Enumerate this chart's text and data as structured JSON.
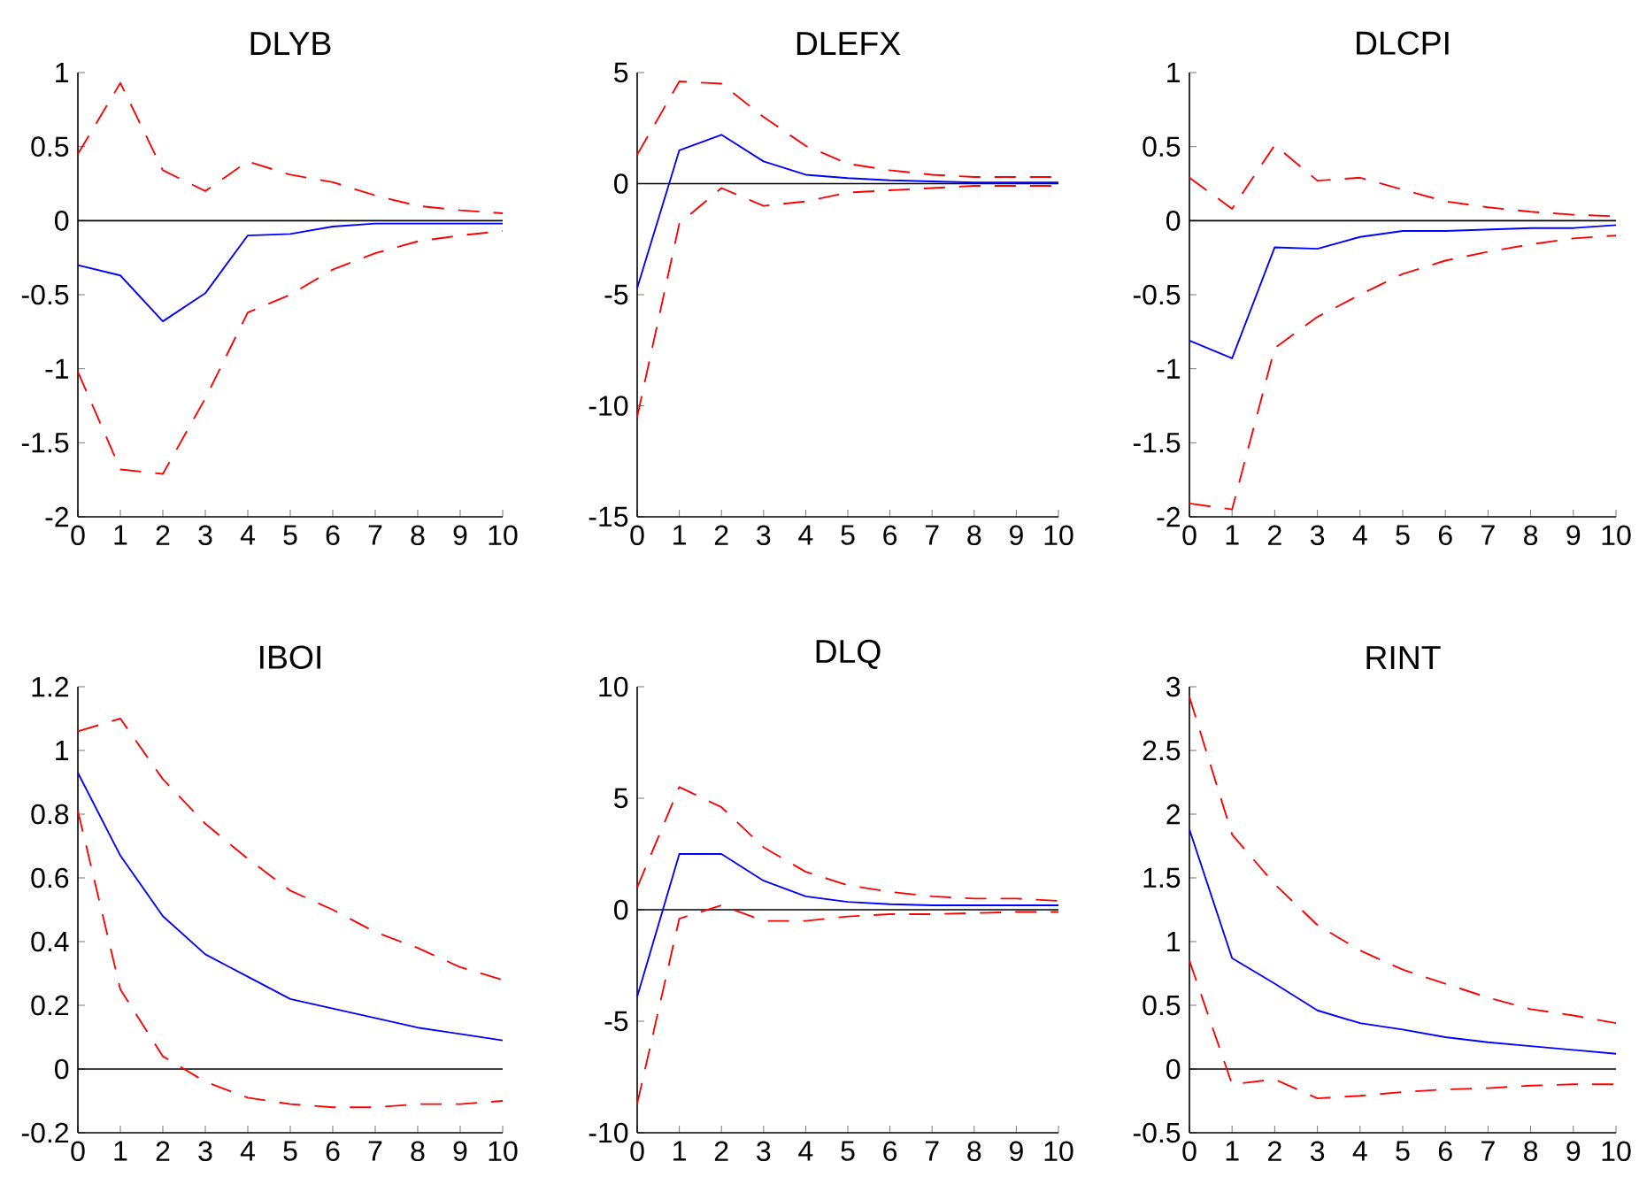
{
  "chart_data": [
    {
      "type": "line",
      "title": "DLYB",
      "x": [
        0,
        1,
        2,
        3,
        4,
        5,
        6,
        7,
        8,
        9,
        10
      ],
      "xlim": [
        0,
        10
      ],
      "xticks": [
        0,
        1,
        2,
        3,
        4,
        5,
        6,
        7,
        8,
        9,
        10
      ],
      "ylim": [
        -2,
        1
      ],
      "yticks": [
        -2,
        -1.5,
        -1,
        -0.5,
        0,
        0.5,
        1
      ],
      "series": [
        {
          "color": "#0000ff",
          "line_style": "solid",
          "values": [
            -0.3,
            -0.37,
            -0.68,
            -0.49,
            -0.1,
            -0.09,
            -0.04,
            -0.02,
            -0.02,
            -0.02,
            -0.02
          ]
        },
        {
          "color": "#ff0000",
          "line_style": "dashed",
          "values": [
            0.45,
            0.93,
            0.34,
            0.2,
            0.4,
            0.31,
            0.26,
            0.17,
            0.1,
            0.07,
            0.05
          ]
        },
        {
          "color": "#ff0000",
          "line_style": "dashed",
          "values": [
            -1.02,
            -1.68,
            -1.71,
            -1.2,
            -0.62,
            -0.5,
            -0.33,
            -0.22,
            -0.14,
            -0.1,
            -0.07
          ]
        }
      ],
      "ref_lines": [
        {
          "axis": "y",
          "value": 0,
          "color": "#000000"
        }
      ]
    },
    {
      "type": "line",
      "title": "DLEFX",
      "x": [
        0,
        1,
        2,
        3,
        4,
        5,
        6,
        7,
        8,
        9,
        10
      ],
      "xlim": [
        0,
        10
      ],
      "xticks": [
        0,
        1,
        2,
        3,
        4,
        5,
        6,
        7,
        8,
        9,
        10
      ],
      "ylim": [
        -15,
        5
      ],
      "yticks": [
        -15,
        -10,
        -5,
        0,
        5
      ],
      "series": [
        {
          "color": "#0000ff",
          "line_style": "solid",
          "values": [
            -4.7,
            1.5,
            2.2,
            1.0,
            0.4,
            0.25,
            0.15,
            0.1,
            0.05,
            0.05,
            0.05
          ]
        },
        {
          "color": "#ff0000",
          "line_style": "dashed",
          "values": [
            1.3,
            4.6,
            4.5,
            3.0,
            1.7,
            0.9,
            0.6,
            0.4,
            0.3,
            0.3,
            0.3
          ]
        },
        {
          "color": "#ff0000",
          "line_style": "dashed",
          "values": [
            -10.5,
            -1.8,
            -0.2,
            -1.0,
            -0.8,
            -0.4,
            -0.3,
            -0.2,
            -0.1,
            -0.1,
            -0.1
          ]
        }
      ],
      "ref_lines": [
        {
          "axis": "y",
          "value": 0,
          "color": "#000000"
        }
      ]
    },
    {
      "type": "line",
      "title": "DLCPI",
      "x": [
        0,
        1,
        2,
        3,
        4,
        5,
        6,
        7,
        8,
        9,
        10
      ],
      "xlim": [
        0,
        10
      ],
      "xticks": [
        0,
        1,
        2,
        3,
        4,
        5,
        6,
        7,
        8,
        9,
        10
      ],
      "ylim": [
        -2,
        1
      ],
      "yticks": [
        -2,
        -1.5,
        -1,
        -0.5,
        0,
        0.5,
        1
      ],
      "series": [
        {
          "color": "#0000ff",
          "line_style": "solid",
          "values": [
            -0.81,
            -0.93,
            -0.18,
            -0.19,
            -0.11,
            -0.07,
            -0.07,
            -0.06,
            -0.05,
            -0.05,
            -0.03
          ]
        },
        {
          "color": "#ff0000",
          "line_style": "dashed",
          "values": [
            0.29,
            0.08,
            0.51,
            0.27,
            0.29,
            0.21,
            0.13,
            0.09,
            0.06,
            0.04,
            0.03
          ]
        },
        {
          "color": "#ff0000",
          "line_style": "dashed",
          "values": [
            -1.91,
            -1.95,
            -0.86,
            -0.65,
            -0.5,
            -0.36,
            -0.27,
            -0.21,
            -0.16,
            -0.12,
            -0.1
          ]
        }
      ],
      "ref_lines": [
        {
          "axis": "y",
          "value": 0,
          "color": "#000000"
        }
      ]
    },
    {
      "type": "line",
      "title": "IBOI",
      "x": [
        0,
        1,
        2,
        3,
        4,
        5,
        6,
        7,
        8,
        9,
        10
      ],
      "xlim": [
        0,
        10
      ],
      "xticks": [
        0,
        1,
        2,
        3,
        4,
        5,
        6,
        7,
        8,
        9,
        10
      ],
      "ylim": [
        -0.2,
        1.2
      ],
      "yticks": [
        -0.2,
        0,
        0.2,
        0.4,
        0.6,
        0.8,
        1,
        1.2
      ],
      "series": [
        {
          "color": "#0000ff",
          "line_style": "solid",
          "values": [
            0.93,
            0.67,
            0.48,
            0.36,
            0.29,
            0.22,
            0.19,
            0.16,
            0.13,
            0.11,
            0.09
          ]
        },
        {
          "color": "#ff0000",
          "line_style": "dashed",
          "values": [
            1.06,
            1.1,
            0.91,
            0.77,
            0.66,
            0.56,
            0.5,
            0.43,
            0.38,
            0.32,
            0.28
          ]
        },
        {
          "color": "#ff0000",
          "line_style": "dashed",
          "values": [
            0.81,
            0.25,
            0.04,
            -0.04,
            -0.09,
            -0.11,
            -0.12,
            -0.12,
            -0.11,
            -0.11,
            -0.1
          ]
        }
      ],
      "ref_lines": [
        {
          "axis": "y",
          "value": 0,
          "color": "#000000"
        }
      ]
    },
    {
      "type": "line",
      "title": "DLQ",
      "x": [
        0,
        1,
        2,
        3,
        4,
        5,
        6,
        7,
        8,
        9,
        10
      ],
      "xlim": [
        0,
        10
      ],
      "xticks": [
        0,
        1,
        2,
        3,
        4,
        5,
        6,
        7,
        8,
        9,
        10
      ],
      "ylim": [
        -10,
        10
      ],
      "yticks": [
        -10,
        -5,
        0,
        5,
        10
      ],
      "series": [
        {
          "color": "#0000ff",
          "line_style": "solid",
          "values": [
            -3.9,
            2.5,
            2.5,
            1.3,
            0.6,
            0.35,
            0.25,
            0.2,
            0.2,
            0.2,
            0.2
          ]
        },
        {
          "color": "#ff0000",
          "line_style": "dashed",
          "values": [
            1.0,
            5.5,
            4.6,
            2.8,
            1.7,
            1.1,
            0.8,
            0.6,
            0.5,
            0.5,
            0.4
          ]
        },
        {
          "color": "#ff0000",
          "line_style": "dashed",
          "values": [
            -8.7,
            -0.4,
            0.2,
            -0.5,
            -0.5,
            -0.3,
            -0.2,
            -0.2,
            -0.15,
            -0.1,
            -0.1
          ]
        }
      ],
      "ref_lines": [
        {
          "axis": "y",
          "value": 0,
          "color": "#000000"
        }
      ]
    },
    {
      "type": "line",
      "title": "RINT",
      "x": [
        0,
        1,
        2,
        3,
        4,
        5,
        6,
        7,
        8,
        9,
        10
      ],
      "xlim": [
        0,
        10
      ],
      "xticks": [
        0,
        1,
        2,
        3,
        4,
        5,
        6,
        7,
        8,
        9,
        10
      ],
      "ylim": [
        -0.5,
        3
      ],
      "yticks": [
        -0.5,
        0,
        0.5,
        1,
        1.5,
        2,
        2.5,
        3
      ],
      "series": [
        {
          "color": "#0000ff",
          "line_style": "solid",
          "values": [
            1.88,
            0.87,
            0.67,
            0.46,
            0.36,
            0.31,
            0.25,
            0.21,
            0.18,
            0.15,
            0.12
          ]
        },
        {
          "color": "#ff0000",
          "line_style": "dashed",
          "values": [
            2.92,
            1.84,
            1.45,
            1.13,
            0.93,
            0.78,
            0.67,
            0.56,
            0.47,
            0.42,
            0.36
          ]
        },
        {
          "color": "#ff0000",
          "line_style": "dashed",
          "values": [
            0.85,
            -0.12,
            -0.08,
            -0.23,
            -0.21,
            -0.18,
            -0.16,
            -0.15,
            -0.13,
            -0.12,
            -0.12
          ]
        }
      ],
      "ref_lines": [
        {
          "axis": "y",
          "value": 0,
          "color": "#000000"
        }
      ]
    }
  ]
}
